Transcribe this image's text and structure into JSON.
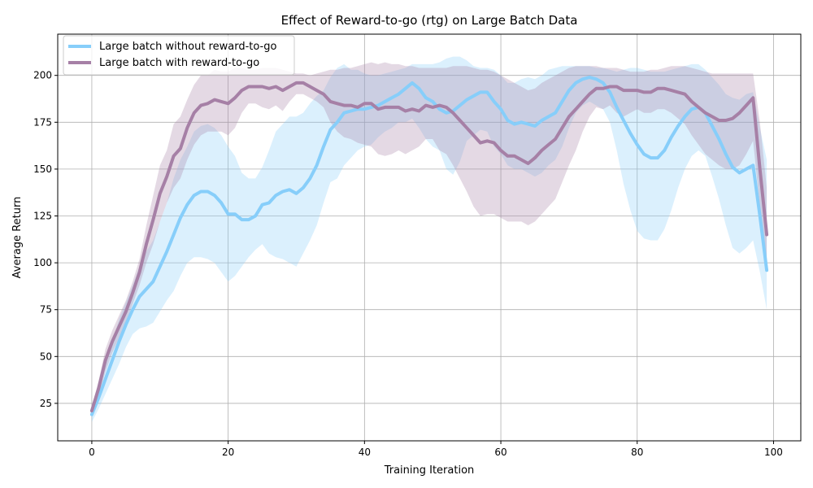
{
  "chart_data": {
    "type": "line",
    "title": "Effect of Reward-to-go (rtg) on Large Batch Data",
    "xlabel": "Training Iteration",
    "ylabel": "Average Return",
    "xlim": [
      -5,
      104
    ],
    "ylim": [
      5,
      222
    ],
    "xticks": [
      0,
      20,
      40,
      60,
      80,
      100
    ],
    "yticks": [
      25,
      50,
      75,
      100,
      125,
      150,
      175,
      200
    ],
    "grid": true,
    "legend_position": "top-left",
    "x": [
      0,
      1,
      2,
      3,
      4,
      5,
      6,
      7,
      8,
      9,
      10,
      11,
      12,
      13,
      14,
      15,
      16,
      17,
      18,
      19,
      20,
      21,
      22,
      23,
      24,
      25,
      26,
      27,
      28,
      29,
      30,
      31,
      32,
      33,
      34,
      35,
      36,
      37,
      38,
      39,
      40,
      41,
      42,
      43,
      44,
      45,
      46,
      47,
      48,
      49,
      50,
      51,
      52,
      53,
      54,
      55,
      56,
      57,
      58,
      59,
      60,
      61,
      62,
      63,
      64,
      65,
      66,
      67,
      68,
      69,
      70,
      71,
      72,
      73,
      74,
      75,
      76,
      77,
      78,
      79,
      80,
      81,
      82,
      83,
      84,
      85,
      86,
      87,
      88,
      89,
      90,
      91,
      92,
      93,
      94,
      95,
      96,
      97,
      98,
      99
    ],
    "series": [
      {
        "name": "Large batch without reward-to-go",
        "color": "#87cefa",
        "mean": [
          19,
          28,
          38,
          48,
          58,
          67,
          75,
          82,
          86,
          90,
          98,
          106,
          115,
          124,
          131,
          136,
          138,
          138,
          136,
          132,
          126,
          126,
          123,
          123,
          125,
          131,
          132,
          136,
          138,
          139,
          137,
          140,
          145,
          152,
          162,
          171,
          175,
          180,
          181,
          182,
          182,
          183,
          184,
          186,
          188,
          190,
          193,
          196,
          193,
          188,
          186,
          182,
          180,
          181,
          184,
          187,
          189,
          191,
          191,
          186,
          182,
          176,
          174,
          175,
          174,
          173,
          176,
          178,
          180,
          186,
          192,
          196,
          198,
          199,
          198,
          196,
          191,
          183,
          176,
          169,
          163,
          158,
          156,
          156,
          160,
          167,
          173,
          178,
          182,
          183,
          180,
          173,
          166,
          158,
          151,
          148,
          150,
          152,
          125,
          96
        ],
        "lower": [
          15,
          22,
          30,
          38,
          46,
          55,
          62,
          65,
          66,
          68,
          74,
          80,
          85,
          93,
          100,
          103,
          103,
          102,
          100,
          95,
          90,
          93,
          98,
          103,
          107,
          110,
          105,
          103,
          102,
          100,
          98,
          105,
          112,
          120,
          132,
          143,
          145,
          152,
          156,
          160,
          162,
          163,
          167,
          170,
          172,
          175,
          175,
          177,
          172,
          166,
          162,
          160,
          150,
          147,
          154,
          165,
          168,
          171,
          170,
          162,
          158,
          152,
          150,
          150,
          148,
          146,
          148,
          152,
          155,
          162,
          172,
          180,
          184,
          186,
          184,
          182,
          175,
          160,
          142,
          128,
          117,
          113,
          112,
          112,
          118,
          128,
          140,
          150,
          157,
          160,
          157,
          146,
          134,
          120,
          108,
          105,
          108,
          112,
          95,
          75
        ],
        "upper": [
          23,
          34,
          46,
          58,
          70,
          79,
          88,
          98,
          106,
          112,
          122,
          132,
          145,
          155,
          162,
          170,
          173,
          174,
          172,
          168,
          162,
          157,
          148,
          145,
          145,
          151,
          160,
          170,
          174,
          178,
          178,
          180,
          185,
          189,
          192,
          199,
          204,
          206,
          203,
          203,
          201,
          200,
          200,
          201,
          202,
          203,
          204,
          206,
          206,
          206,
          206,
          207,
          209,
          210,
          210,
          208,
          205,
          204,
          204,
          203,
          200,
          196,
          196,
          198,
          199,
          198,
          200,
          203,
          204,
          205,
          205,
          205,
          205,
          205,
          204,
          204,
          203,
          202,
          203,
          204,
          204,
          203,
          202,
          202,
          202,
          203,
          204,
          205,
          206,
          206,
          203,
          199,
          195,
          190,
          188,
          187,
          190,
          191,
          172,
          155
        ]
      },
      {
        "name": "Large batch with reward-to-go",
        "color": "#a680a6",
        "mean": [
          21,
          33,
          48,
          58,
          66,
          74,
          84,
          95,
          110,
          123,
          137,
          146,
          157,
          161,
          172,
          180,
          184,
          185,
          187,
          186,
          185,
          188,
          192,
          194,
          194,
          194,
          193,
          194,
          192,
          194,
          196,
          196,
          194,
          192,
          190,
          186,
          185,
          184,
          184,
          183,
          185,
          185,
          182,
          183,
          183,
          183,
          181,
          182,
          181,
          184,
          183,
          184,
          183,
          180,
          176,
          172,
          168,
          164,
          165,
          164,
          160,
          157,
          157,
          155,
          153,
          156,
          160,
          163,
          166,
          172,
          178,
          182,
          186,
          190,
          193,
          193,
          194,
          194,
          192,
          192,
          192,
          191,
          191,
          193,
          193,
          192,
          191,
          190,
          186,
          183,
          180,
          178,
          176,
          176,
          177,
          180,
          184,
          188,
          150,
          115
        ],
        "lower": [
          19,
          29,
          42,
          52,
          60,
          68,
          78,
          88,
          100,
          110,
          122,
          132,
          140,
          145,
          155,
          163,
          168,
          170,
          170,
          170,
          168,
          172,
          180,
          185,
          185,
          183,
          182,
          184,
          181,
          186,
          190,
          190,
          188,
          186,
          183,
          175,
          170,
          167,
          166,
          164,
          163,
          162,
          158,
          157,
          158,
          160,
          158,
          160,
          162,
          166,
          166,
          160,
          158,
          152,
          145,
          138,
          130,
          125,
          126,
          126,
          124,
          122,
          122,
          122,
          120,
          122,
          126,
          130,
          134,
          143,
          152,
          160,
          170,
          178,
          183,
          182,
          184,
          180,
          178,
          180,
          182,
          180,
          180,
          182,
          182,
          180,
          177,
          174,
          168,
          163,
          158,
          155,
          152,
          150,
          150,
          152,
          158,
          165,
          130,
          95
        ],
        "upper": [
          23,
          37,
          54,
          64,
          72,
          80,
          90,
          102,
          120,
          136,
          152,
          160,
          174,
          178,
          187,
          195,
          200,
          200,
          203,
          202,
          202,
          204,
          204,
          203,
          203,
          204,
          204,
          204,
          203,
          202,
          201,
          201,
          200,
          201,
          202,
          203,
          203,
          204,
          204,
          205,
          206,
          207,
          206,
          207,
          206,
          206,
          205,
          205,
          204,
          204,
          204,
          204,
          204,
          205,
          205,
          205,
          204,
          203,
          203,
          202,
          200,
          198,
          196,
          194,
          192,
          193,
          196,
          198,
          200,
          202,
          204,
          205,
          205,
          205,
          205,
          204,
          204,
          204,
          203,
          202,
          202,
          202,
          203,
          203,
          204,
          205,
          205,
          205,
          204,
          203,
          202,
          201,
          201,
          201,
          201,
          201,
          201,
          201,
          175,
          140
        ]
      }
    ]
  }
}
